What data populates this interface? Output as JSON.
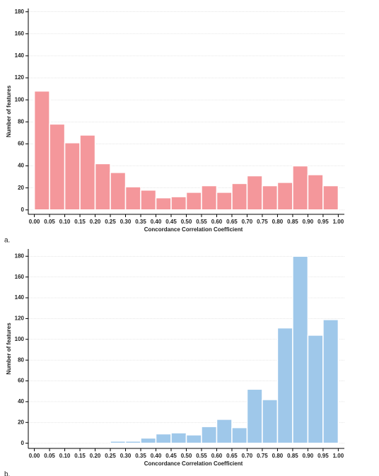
{
  "chart_data": [
    {
      "type": "histogram",
      "panel_label": "a.",
      "xlabel": "Concordance Correlation Coefficient",
      "ylabel": "Number of features",
      "color": "#f4979b",
      "grid": true,
      "bins": [
        0,
        0.05,
        0.1,
        0.15,
        0.2,
        0.25,
        0.3,
        0.35,
        0.4,
        0.45,
        0.5,
        0.55,
        0.6,
        0.65,
        0.7,
        0.75,
        0.8,
        0.85,
        0.9,
        0.95,
        1
      ],
      "values": [
        108,
        78,
        61,
        68,
        42,
        34,
        21,
        18,
        11,
        12,
        16,
        22,
        16,
        24,
        31,
        22,
        25,
        40,
        32,
        22
      ],
      "xlim": [
        -0.02,
        1.02
      ],
      "ylim": [
        -4,
        183
      ],
      "xticks": [
        {
          "value": 0,
          "label": "0.00"
        },
        {
          "value": 0.05,
          "label": "0.05"
        },
        {
          "value": 0.1,
          "label": "0.10"
        },
        {
          "value": 0.15,
          "label": "0.15"
        },
        {
          "value": 0.2,
          "label": "0.20"
        },
        {
          "value": 0.25,
          "label": "0.25"
        },
        {
          "value": 0.3,
          "label": "0.30"
        },
        {
          "value": 0.35,
          "label": "0.35"
        },
        {
          "value": 0.4,
          "label": "0.40"
        },
        {
          "value": 0.45,
          "label": "0.45"
        },
        {
          "value": 0.5,
          "label": "0.50"
        },
        {
          "value": 0.55,
          "label": "0.55"
        },
        {
          "value": 0.6,
          "label": "0.60"
        },
        {
          "value": 0.65,
          "label": "0.65"
        },
        {
          "value": 0.7,
          "label": "0.70"
        },
        {
          "value": 0.75,
          "label": "0.75"
        },
        {
          "value": 0.8,
          "label": "0.80"
        },
        {
          "value": 0.85,
          "label": "0.85"
        },
        {
          "value": 0.9,
          "label": "0.90"
        },
        {
          "value": 0.95,
          "label": "0.95"
        },
        {
          "value": 1,
          "label": "1.00"
        }
      ],
      "yticks": [
        0,
        20,
        40,
        60,
        80,
        100,
        120,
        140,
        160,
        180
      ]
    },
    {
      "type": "histogram",
      "panel_label": "b.",
      "xlabel": "Concordance Correlation Coefficient",
      "ylabel": "Number of features",
      "color": "#9fc8ea",
      "grid": true,
      "bins": [
        0,
        0.05,
        0.1,
        0.15,
        0.2,
        0.25,
        0.3,
        0.35,
        0.4,
        0.45,
        0.5,
        0.55,
        0.6,
        0.65,
        0.7,
        0.75,
        0.8,
        0.85,
        0.9,
        0.95,
        1
      ],
      "values": [
        0,
        0,
        0,
        0,
        0,
        2,
        2,
        5,
        9,
        10,
        8,
        16,
        23,
        15,
        52,
        42,
        111,
        180,
        104,
        119
      ],
      "xlim": [
        -0.02,
        1.02
      ],
      "ylim": [
        -5,
        187
      ],
      "xticks": [
        {
          "value": 0,
          "label": "0.00"
        },
        {
          "value": 0.05,
          "label": "0.05"
        },
        {
          "value": 0.1,
          "label": "0.10"
        },
        {
          "value": 0.15,
          "label": "0.15"
        },
        {
          "value": 0.2,
          "label": "0.20"
        },
        {
          "value": 0.25,
          "label": "0.25"
        },
        {
          "value": 0.3,
          "label": "0.30"
        },
        {
          "value": 0.35,
          "label": "0.35"
        },
        {
          "value": 0.4,
          "label": "0.40"
        },
        {
          "value": 0.45,
          "label": "0.45"
        },
        {
          "value": 0.5,
          "label": "0.50"
        },
        {
          "value": 0.55,
          "label": "0.55"
        },
        {
          "value": 0.6,
          "label": "0.60"
        },
        {
          "value": 0.65,
          "label": "0.65"
        },
        {
          "value": 0.7,
          "label": "0.70"
        },
        {
          "value": 0.75,
          "label": "0.75"
        },
        {
          "value": 0.8,
          "label": "0.80"
        },
        {
          "value": 0.85,
          "label": "0.85"
        },
        {
          "value": 0.9,
          "label": "0.90"
        },
        {
          "value": 0.95,
          "label": "0.95"
        },
        {
          "value": 1,
          "label": "1.00"
        }
      ],
      "yticks": [
        0,
        20,
        40,
        60,
        80,
        100,
        120,
        140,
        160,
        180
      ]
    }
  ]
}
